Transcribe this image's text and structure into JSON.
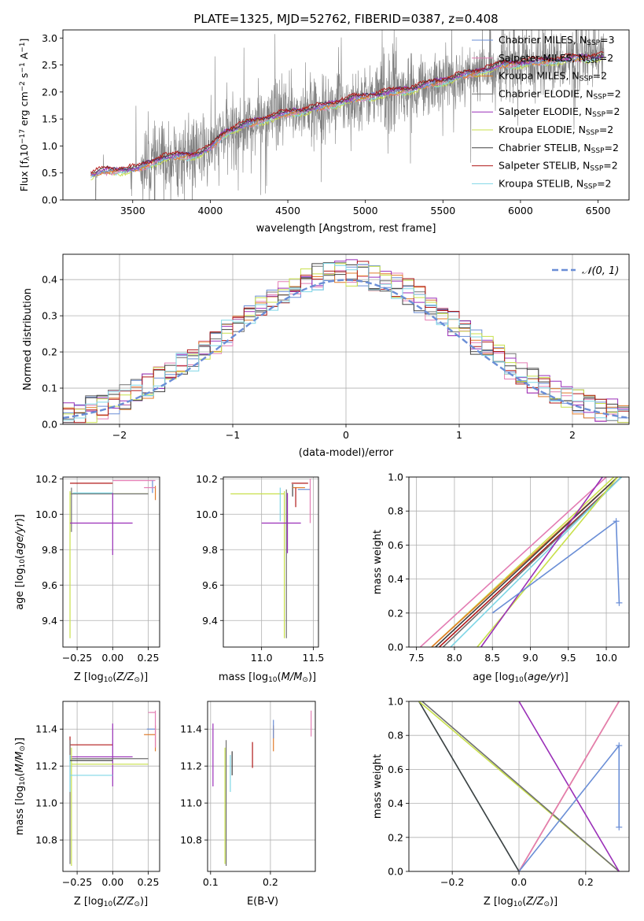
{
  "figure_title": "PLATE=1325, MJD=52762, FIBERID=0387, z=0.408",
  "series_colors": {
    "Chabrier MILES": "#6a8ed6",
    "Salpeter MILES": "#e37cb3",
    "Kroupa MILES": "#e07b2a",
    "Chabrier ELODIE": "#707070",
    "Salpeter ELODIE": "#9a2fb8",
    "Kroupa ELODIE": "#c8e04a",
    "Chabrier STELIB": "#404040",
    "Salpeter STELIB": "#b01818",
    "Kroupa STELIB": "#7fd6e6"
  },
  "chart_data": [
    {
      "id": "spectrum",
      "type": "line",
      "title": "PLATE=1325, MJD=52762, FIBERID=0387, z=0.408",
      "xlabel": "wavelength [Angstrom, rest frame]",
      "ylabel": "Flux [f$_\\lambda$10$^{-17}$ erg cm$^{-2}$ s$^{-1}$ A$^{-1}$]",
      "xlim": [
        3050,
        6700
      ],
      "ylim": [
        0,
        3.15
      ],
      "xticks": [
        3500,
        4000,
        4500,
        5000,
        5500,
        6000,
        6500
      ],
      "yticks": [
        0.0,
        0.5,
        1.0,
        1.5,
        2.0,
        2.5,
        3.0
      ],
      "grid": false,
      "legend_position": "top-right",
      "legend": [
        {
          "name": "Chabrier MILES",
          "nssp": "3"
        },
        {
          "name": "Salpeter MILES",
          "nssp": "2"
        },
        {
          "name": "Kroupa MILES",
          "nssp": "2"
        },
        {
          "name": "Chabrier ELODIE",
          "nssp": "2"
        },
        {
          "name": "Salpeter ELODIE",
          "nssp": "2"
        },
        {
          "name": "Kroupa ELODIE",
          "nssp": "2"
        },
        {
          "name": "Chabrier STELIB",
          "nssp": "2"
        },
        {
          "name": "Salpeter STELIB",
          "nssp": "2"
        },
        {
          "name": "Kroupa STELIB",
          "nssp": "2"
        }
      ],
      "data_wavelength_range": [
        3230,
        6540
      ],
      "continuum_points": [
        [
          3230,
          0.45
        ],
        [
          3300,
          0.52
        ],
        [
          3450,
          0.55
        ],
        [
          3540,
          0.58
        ],
        [
          3700,
          0.78
        ],
        [
          3900,
          0.82
        ],
        [
          4000,
          0.95
        ],
        [
          4100,
          1.25
        ],
        [
          4300,
          1.45
        ],
        [
          4500,
          1.6
        ],
        [
          4700,
          1.7
        ],
        [
          4900,
          1.85
        ],
        [
          5100,
          1.95
        ],
        [
          5300,
          2.05
        ],
        [
          5500,
          2.2
        ],
        [
          5700,
          2.35
        ],
        [
          5900,
          2.5
        ],
        [
          6100,
          2.55
        ],
        [
          6300,
          2.6
        ],
        [
          6540,
          2.65
        ]
      ]
    },
    {
      "id": "residuals",
      "type": "step",
      "xlabel": "(data-model)/error",
      "ylabel": "Normed distribution",
      "xlim": [
        -2.5,
        2.5
      ],
      "ylim": [
        0,
        0.47
      ],
      "xticks": [
        -2,
        -1,
        0,
        1,
        2
      ],
      "yticks": [
        0.0,
        0.1,
        0.2,
        0.3,
        0.4
      ],
      "grid": true,
      "legend_position": "top-right",
      "legend": [
        "$\\mathcal{N}(0,1)$"
      ],
      "reference_curve": "normal(0,1) pdf"
    },
    {
      "id": "age_vs_Z",
      "type": "scatter",
      "xlabel": "Z [log$_{10}$(Z/Z$_\\odot$)]",
      "ylabel": "age  [log$_{10}$(age/yr)]",
      "xlim": [
        -0.35,
        0.33
      ],
      "ylim": [
        9.25,
        10.21
      ],
      "xticks": [
        -0.25,
        0.0,
        0.25
      ],
      "yticks": [
        9.4,
        9.6,
        9.8,
        10.0,
        10.2
      ],
      "grid": true,
      "points": [
        {
          "series": "Salpeter STELIB",
          "x": -0.3,
          "xerr": 0.0,
          "x0": -0.3,
          "x1": 0.0,
          "y": 10.17
        },
        {
          "series": "Kroupa ELODIE",
          "x": -0.3,
          "x0": -0.3,
          "x1": 0.25,
          "y": 10.11
        },
        {
          "series": "Salpeter ELODIE",
          "x": 0.0,
          "x0": -0.3,
          "x1": 0.18,
          "y": 9.95,
          "y0": 9.77,
          "y1": 10.11
        },
        {
          "series": "Kroupa ELODIE",
          "x": -0.3,
          "y": 10.11,
          "y0": 9.3,
          "y1": 10.12
        },
        {
          "series": "Chabrier MILES",
          "x": 0.28,
          "y": 10.13,
          "y0": 10.12,
          "y1": 10.18
        },
        {
          "series": "Salpeter MILES",
          "x": 0.3,
          "y": 10.15
        },
        {
          "series": "Kroupa MILES",
          "x": 0.3,
          "y": 10.14,
          "y0": 10.08,
          "y1": 10.16
        }
      ]
    },
    {
      "id": "age_vs_mass",
      "type": "scatter",
      "xlabel": "mass [log$_{10}$(M/M$_\\odot$)]",
      "ylabel": "",
      "xlim": [
        10.63,
        11.55
      ],
      "ylim": [
        9.25,
        10.21
      ],
      "xticks": [
        11.0,
        11.5
      ],
      "yticks": [
        9.4,
        9.6,
        9.8,
        10.0,
        10.2
      ],
      "grid": true
    },
    {
      "id": "weight_vs_age",
      "type": "line",
      "xlabel": "age  [log$_{10}$(age/yr)]",
      "ylabel": "mass weight",
      "xlim": [
        7.4,
        10.3
      ],
      "ylim": [
        0,
        1.0
      ],
      "xticks": [
        7.5,
        8.0,
        8.5,
        9.0,
        9.5,
        10.0
      ],
      "yticks": [
        0.0,
        0.2,
        0.4,
        0.6,
        0.8,
        1.0
      ],
      "grid": true
    },
    {
      "id": "mass_vs_Z",
      "type": "scatter",
      "xlabel": "Z [log$_{10}$(Z/Z$_\\odot$)]",
      "ylabel": "mass [log$_{10}$(M/M$_\\odot$)]",
      "xlim": [
        -0.35,
        0.33
      ],
      "ylim": [
        10.63,
        11.55
      ],
      "xticks": [
        -0.25,
        0.0,
        0.25
      ],
      "yticks": [
        10.8,
        11.0,
        11.2,
        11.4
      ],
      "grid": true
    },
    {
      "id": "mass_vs_EBV",
      "type": "scatter",
      "xlabel": "E(B-V)",
      "ylabel": "",
      "xlim": [
        0.095,
        0.275
      ],
      "ylim": [
        10.63,
        11.55
      ],
      "xticks": [
        0.1,
        0.2
      ],
      "yticks": [
        10.8,
        11.0,
        11.2,
        11.4
      ],
      "grid": true
    },
    {
      "id": "weight_vs_Z",
      "type": "line",
      "xlabel": "Z [log$_{10}$(Z/Z$_\\odot$)]",
      "ylabel": "mass weight",
      "xlim": [
        -0.33,
        0.33
      ],
      "ylim": [
        0,
        1.0
      ],
      "xticks": [
        -0.2,
        0.0,
        0.2
      ],
      "yticks": [
        0.0,
        0.2,
        0.4,
        0.6,
        0.8,
        1.0
      ],
      "grid": true
    }
  ],
  "labels": {
    "spectrum_xlabel": "wavelength [Angstrom, rest frame]",
    "residual_xlabel": "(data-model)/error",
    "residual_ylabel": "Normed distribution",
    "normal_legend": "𝒩(0, 1)",
    "mass_weight": "mass weight",
    "ebv": "E(B-V)"
  }
}
